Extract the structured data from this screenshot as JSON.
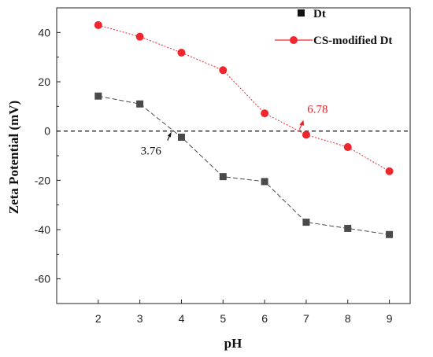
{
  "chart_data": {
    "type": "line",
    "title": "",
    "xlabel": "pH",
    "ylabel": "Zeta Potential (mV)",
    "xlim": [
      1,
      9.5
    ],
    "ylim": [
      -70,
      50
    ],
    "xticks": [
      2,
      3,
      4,
      5,
      6,
      7,
      8,
      9
    ],
    "yticks": [
      -60,
      -40,
      -20,
      0,
      20,
      40
    ],
    "reference_line": {
      "y": 0,
      "style": "dashed"
    },
    "legend_position": "top-right",
    "series": [
      {
        "name": "Dt",
        "color": "#4a4a4a",
        "marker": "square",
        "line": "dashed",
        "x": [
          2,
          3,
          4,
          5,
          6,
          7,
          8,
          9
        ],
        "y": [
          14.2,
          11,
          -2.5,
          -18.5,
          -20.5,
          -37,
          -39.5,
          -42
        ]
      },
      {
        "name": "CS-modified Dt",
        "color": "#f0262f",
        "marker": "circle",
        "line": "dotted",
        "x": [
          2,
          3,
          4,
          5,
          6,
          7,
          8,
          9
        ],
        "y": [
          43,
          38.3,
          31.8,
          24.7,
          7.2,
          -1.5,
          -6.5,
          -16.3
        ]
      }
    ],
    "annotations": [
      {
        "text": "3.76",
        "x": 3.76,
        "y": 0,
        "color": "#111111"
      },
      {
        "text": "6.78",
        "x": 6.78,
        "y": 0,
        "color": "#e8232b"
      }
    ]
  }
}
